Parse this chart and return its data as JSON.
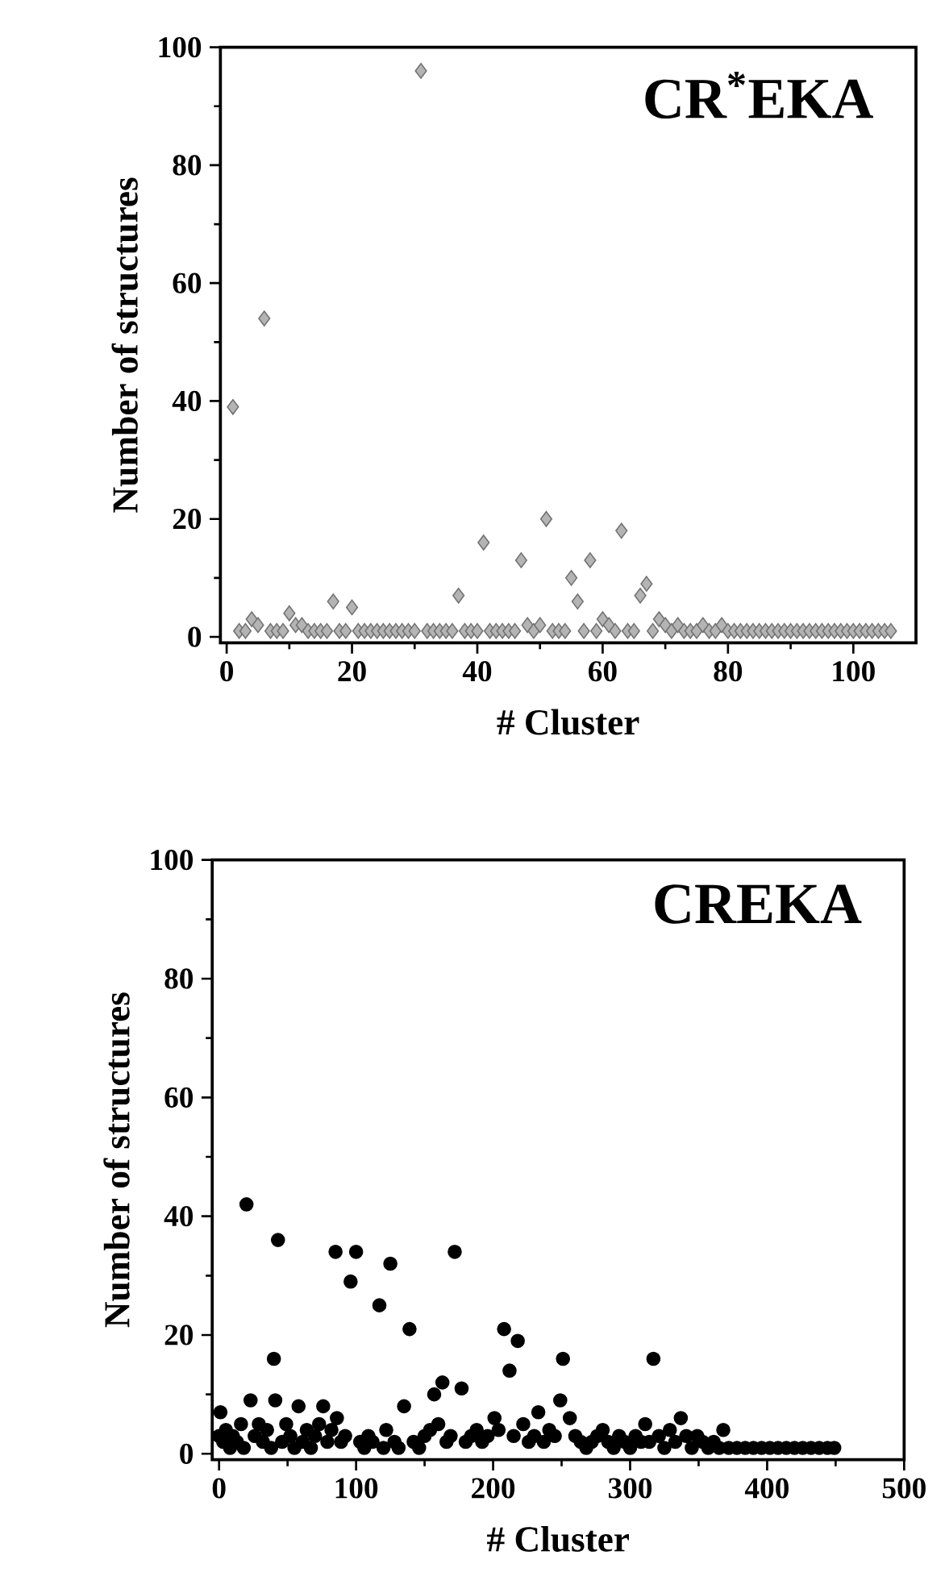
{
  "chart_data": [
    {
      "type": "scatter",
      "title": "CR$^{*}$EKA",
      "xlabel": "# Cluster",
      "ylabel": "Number of structures",
      "marker": "diamond",
      "color": "#b4b4b4",
      "grid": false,
      "xlim": [
        -1,
        110
      ],
      "ylim": [
        -1,
        100
      ],
      "xticks": [
        0,
        20,
        40,
        60,
        80,
        100
      ],
      "yticks": [
        0,
        20,
        40,
        60,
        80,
        100
      ],
      "x": [
        1,
        2,
        3,
        4,
        5,
        6,
        7,
        8,
        9,
        10,
        11,
        12,
        13,
        14,
        15,
        16,
        17,
        18,
        19,
        20,
        21,
        22,
        23,
        24,
        25,
        26,
        27,
        28,
        29,
        30,
        31,
        32,
        33,
        34,
        35,
        36,
        37,
        38,
        39,
        40,
        41,
        42,
        43,
        44,
        45,
        46,
        47,
        48,
        49,
        50,
        51,
        52,
        53,
        54,
        55,
        56,
        57,
        58,
        59,
        60,
        61,
        62,
        63,
        64,
        65,
        66,
        67,
        68,
        69,
        70,
        71,
        72,
        73,
        74,
        75,
        76,
        77,
        78,
        79,
        80,
        81,
        82,
        83,
        84,
        85,
        86,
        87,
        88,
        89,
        90,
        91,
        92,
        93,
        94,
        95,
        96,
        97,
        98,
        99,
        100,
        101,
        102,
        103,
        104,
        105,
        106
      ],
      "values": [
        39,
        1,
        1,
        3,
        2,
        54,
        1,
        1,
        1,
        4,
        2,
        2,
        1,
        1,
        1,
        1,
        6,
        1,
        1,
        5,
        1,
        1,
        1,
        1,
        1,
        1,
        1,
        1,
        1,
        1,
        96,
        1,
        1,
        1,
        1,
        1,
        7,
        1,
        1,
        1,
        16,
        1,
        1,
        1,
        1,
        1,
        13,
        2,
        1,
        2,
        20,
        1,
        1,
        1,
        10,
        6,
        1,
        13,
        1,
        3,
        2,
        1,
        18,
        1,
        1,
        7,
        9,
        1,
        3,
        2,
        1,
        2,
        1,
        1,
        1,
        2,
        1,
        1,
        2,
        1,
        1,
        1,
        1,
        1,
        1,
        1,
        1,
        1,
        1,
        1,
        1,
        1,
        1,
        1,
        1,
        1,
        1,
        1,
        1,
        1,
        1,
        1,
        1,
        1,
        1,
        1
      ]
    },
    {
      "type": "scatter",
      "title": "CREKA",
      "xlabel": "# Cluster",
      "ylabel": "Number of structures",
      "marker": "circle",
      "color": "#000000",
      "grid": false,
      "xlim": [
        -5,
        500
      ],
      "ylim": [
        -1,
        100
      ],
      "xticks": [
        0,
        100,
        200,
        300,
        400,
        500
      ],
      "yticks": [
        0,
        20,
        40,
        60,
        80,
        100
      ],
      "x": [
        0,
        1,
        3,
        5,
        8,
        10,
        13,
        16,
        18,
        20,
        23,
        26,
        29,
        32,
        35,
        38,
        40,
        41,
        43,
        46,
        49,
        52,
        55,
        58,
        61,
        64,
        67,
        70,
        73,
        76,
        79,
        82,
        85,
        86,
        89,
        92,
        96,
        100,
        103,
        106,
        109,
        112,
        117,
        120,
        122,
        125,
        128,
        131,
        135,
        139,
        142,
        146,
        150,
        154,
        157,
        160,
        163,
        166,
        169,
        172,
        177,
        180,
        184,
        188,
        192,
        196,
        201,
        204,
        208,
        212,
        215,
        218,
        222,
        226,
        230,
        233,
        237,
        241,
        245,
        249,
        251,
        256,
        260,
        264,
        268,
        272,
        276,
        280,
        284,
        288,
        292,
        296,
        300,
        304,
        308,
        311,
        314,
        317,
        321,
        325,
        329,
        333,
        337,
        341,
        345,
        349,
        353,
        357,
        361,
        365,
        368,
        372,
        378,
        384,
        390,
        396,
        402,
        408,
        414,
        420,
        426,
        432,
        438,
        444,
        449
      ],
      "values": [
        3,
        7,
        2,
        4,
        1,
        3,
        2,
        5,
        1,
        42,
        9,
        3,
        5,
        2,
        4,
        1,
        16,
        9,
        36,
        2,
        5,
        3,
        1,
        8,
        2,
        4,
        1,
        3,
        5,
        8,
        2,
        4,
        34,
        6,
        2,
        3,
        29,
        34,
        2,
        1,
        3,
        2,
        25,
        1,
        4,
        32,
        2,
        1,
        8,
        21,
        2,
        1,
        3,
        4,
        10,
        5,
        12,
        2,
        3,
        34,
        11,
        2,
        3,
        4,
        2,
        3,
        6,
        4,
        21,
        14,
        3,
        19,
        5,
        2,
        3,
        7,
        2,
        4,
        3,
        9,
        16,
        6,
        3,
        2,
        1,
        2,
        3,
        4,
        2,
        1,
        3,
        2,
        1,
        3,
        2,
        5,
        2,
        16,
        3,
        1,
        4,
        2,
        6,
        3,
        1,
        3,
        2,
        1,
        2,
        1,
        4,
        1,
        1,
        1,
        1,
        1,
        1,
        1,
        1,
        1,
        1,
        1,
        1,
        1,
        1
      ]
    }
  ]
}
